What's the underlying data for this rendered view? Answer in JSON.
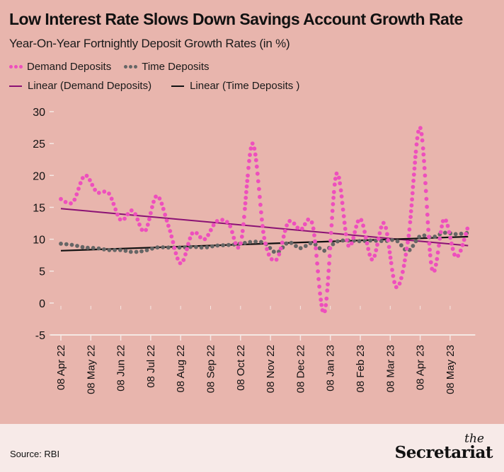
{
  "header": {
    "title": "Low Interest Rate Slows Down Savings Account Growth Rate",
    "subtitle": "Year-On-Year Fortnightly Deposit Growth Rates (in %)"
  },
  "legend": [
    {
      "label": "Demand Deposits",
      "style": "dots",
      "color": "#ee4fbd"
    },
    {
      "label": "Time Deposits",
      "style": "dots",
      "color": "#666666"
    },
    {
      "label": "Linear (Demand Deposits)",
      "style": "line",
      "color": "#8b1174"
    },
    {
      "label": "Linear (Time Deposits )",
      "style": "line",
      "color": "#111111"
    }
  ],
  "chart_data": {
    "type": "line",
    "title": "Low Interest Rate Slows Down Savings Account Growth Rate",
    "subtitle": "Year-On-Year Fortnightly Deposit Growth Rates (in %)",
    "xlabel": "",
    "ylabel": "",
    "ylim": [
      -5,
      30
    ],
    "yticks": [
      30,
      25,
      20,
      15,
      10,
      5,
      0,
      -5
    ],
    "xtick_labels": [
      "08 Apr 22",
      "08 May 22",
      "08 Jun 22",
      "08 Jul 22",
      "08 Aug 22",
      "08 Sep 22",
      "08 Oct 22",
      "08 Nov 22",
      "08 Dec 22",
      "08 Jan 23",
      "08 Feb 23",
      "08 Mar 23",
      "08 Apr 23",
      "08 May 23"
    ],
    "x_months_range": [
      0,
      13.65
    ],
    "x_months": [
      0.0,
      0.4,
      0.8,
      1.2,
      1.6,
      2.0,
      2.4,
      2.8,
      3.2,
      3.6,
      4.0,
      4.4,
      4.8,
      5.2,
      5.6,
      6.0,
      6.4,
      6.8,
      7.2,
      7.6,
      8.0,
      8.4,
      8.8,
      9.2,
      9.6,
      10.0,
      10.4,
      10.8,
      11.2,
      11.6,
      12.0,
      12.4,
      12.8,
      13.2,
      13.6
    ],
    "series": [
      {
        "name": "Demand Deposits",
        "style": "dots",
        "color": "#ee4fbd",
        "values": [
          16.3,
          15.8,
          20.0,
          17.4,
          17.2,
          13.0,
          14.5,
          11.2,
          16.8,
          12.0,
          6.2,
          11.0,
          10.0,
          12.8,
          12.5,
          9.2,
          25.0,
          10.0,
          6.8,
          12.7,
          11.5,
          12.4,
          -1.5,
          20.2,
          9.0,
          13.2,
          6.8,
          12.5,
          2.5,
          10.0,
          27.5,
          5.2,
          13.2,
          7.2,
          12.0
        ]
      },
      {
        "name": "Time Deposits",
        "style": "dots",
        "color": "#666666",
        "values": [
          9.3,
          9.1,
          8.7,
          8.6,
          8.3,
          8.3,
          8.0,
          8.2,
          8.7,
          8.7,
          8.7,
          8.8,
          8.7,
          9.0,
          9.1,
          9.3,
          9.6,
          9.4,
          7.9,
          9.5,
          8.6,
          9.4,
          8.2,
          9.6,
          9.8,
          9.7,
          9.8,
          9.7,
          9.8,
          8.2,
          10.5,
          10.3,
          11.0,
          10.8,
          11.0
        ]
      },
      {
        "name": "Linear (Demand Deposits)",
        "style": "line",
        "color": "#8b1174",
        "endpoints": [
          14.8,
          9.0
        ]
      },
      {
        "name": "Linear (Time Deposits )",
        "style": "line",
        "color": "#111111",
        "endpoints": [
          8.2,
          10.4
        ]
      }
    ],
    "grid": false,
    "legend_position": "top-left"
  },
  "footer": {
    "source": "Source: RBI",
    "brand_small": "the",
    "brand_name": "Secretariat"
  }
}
